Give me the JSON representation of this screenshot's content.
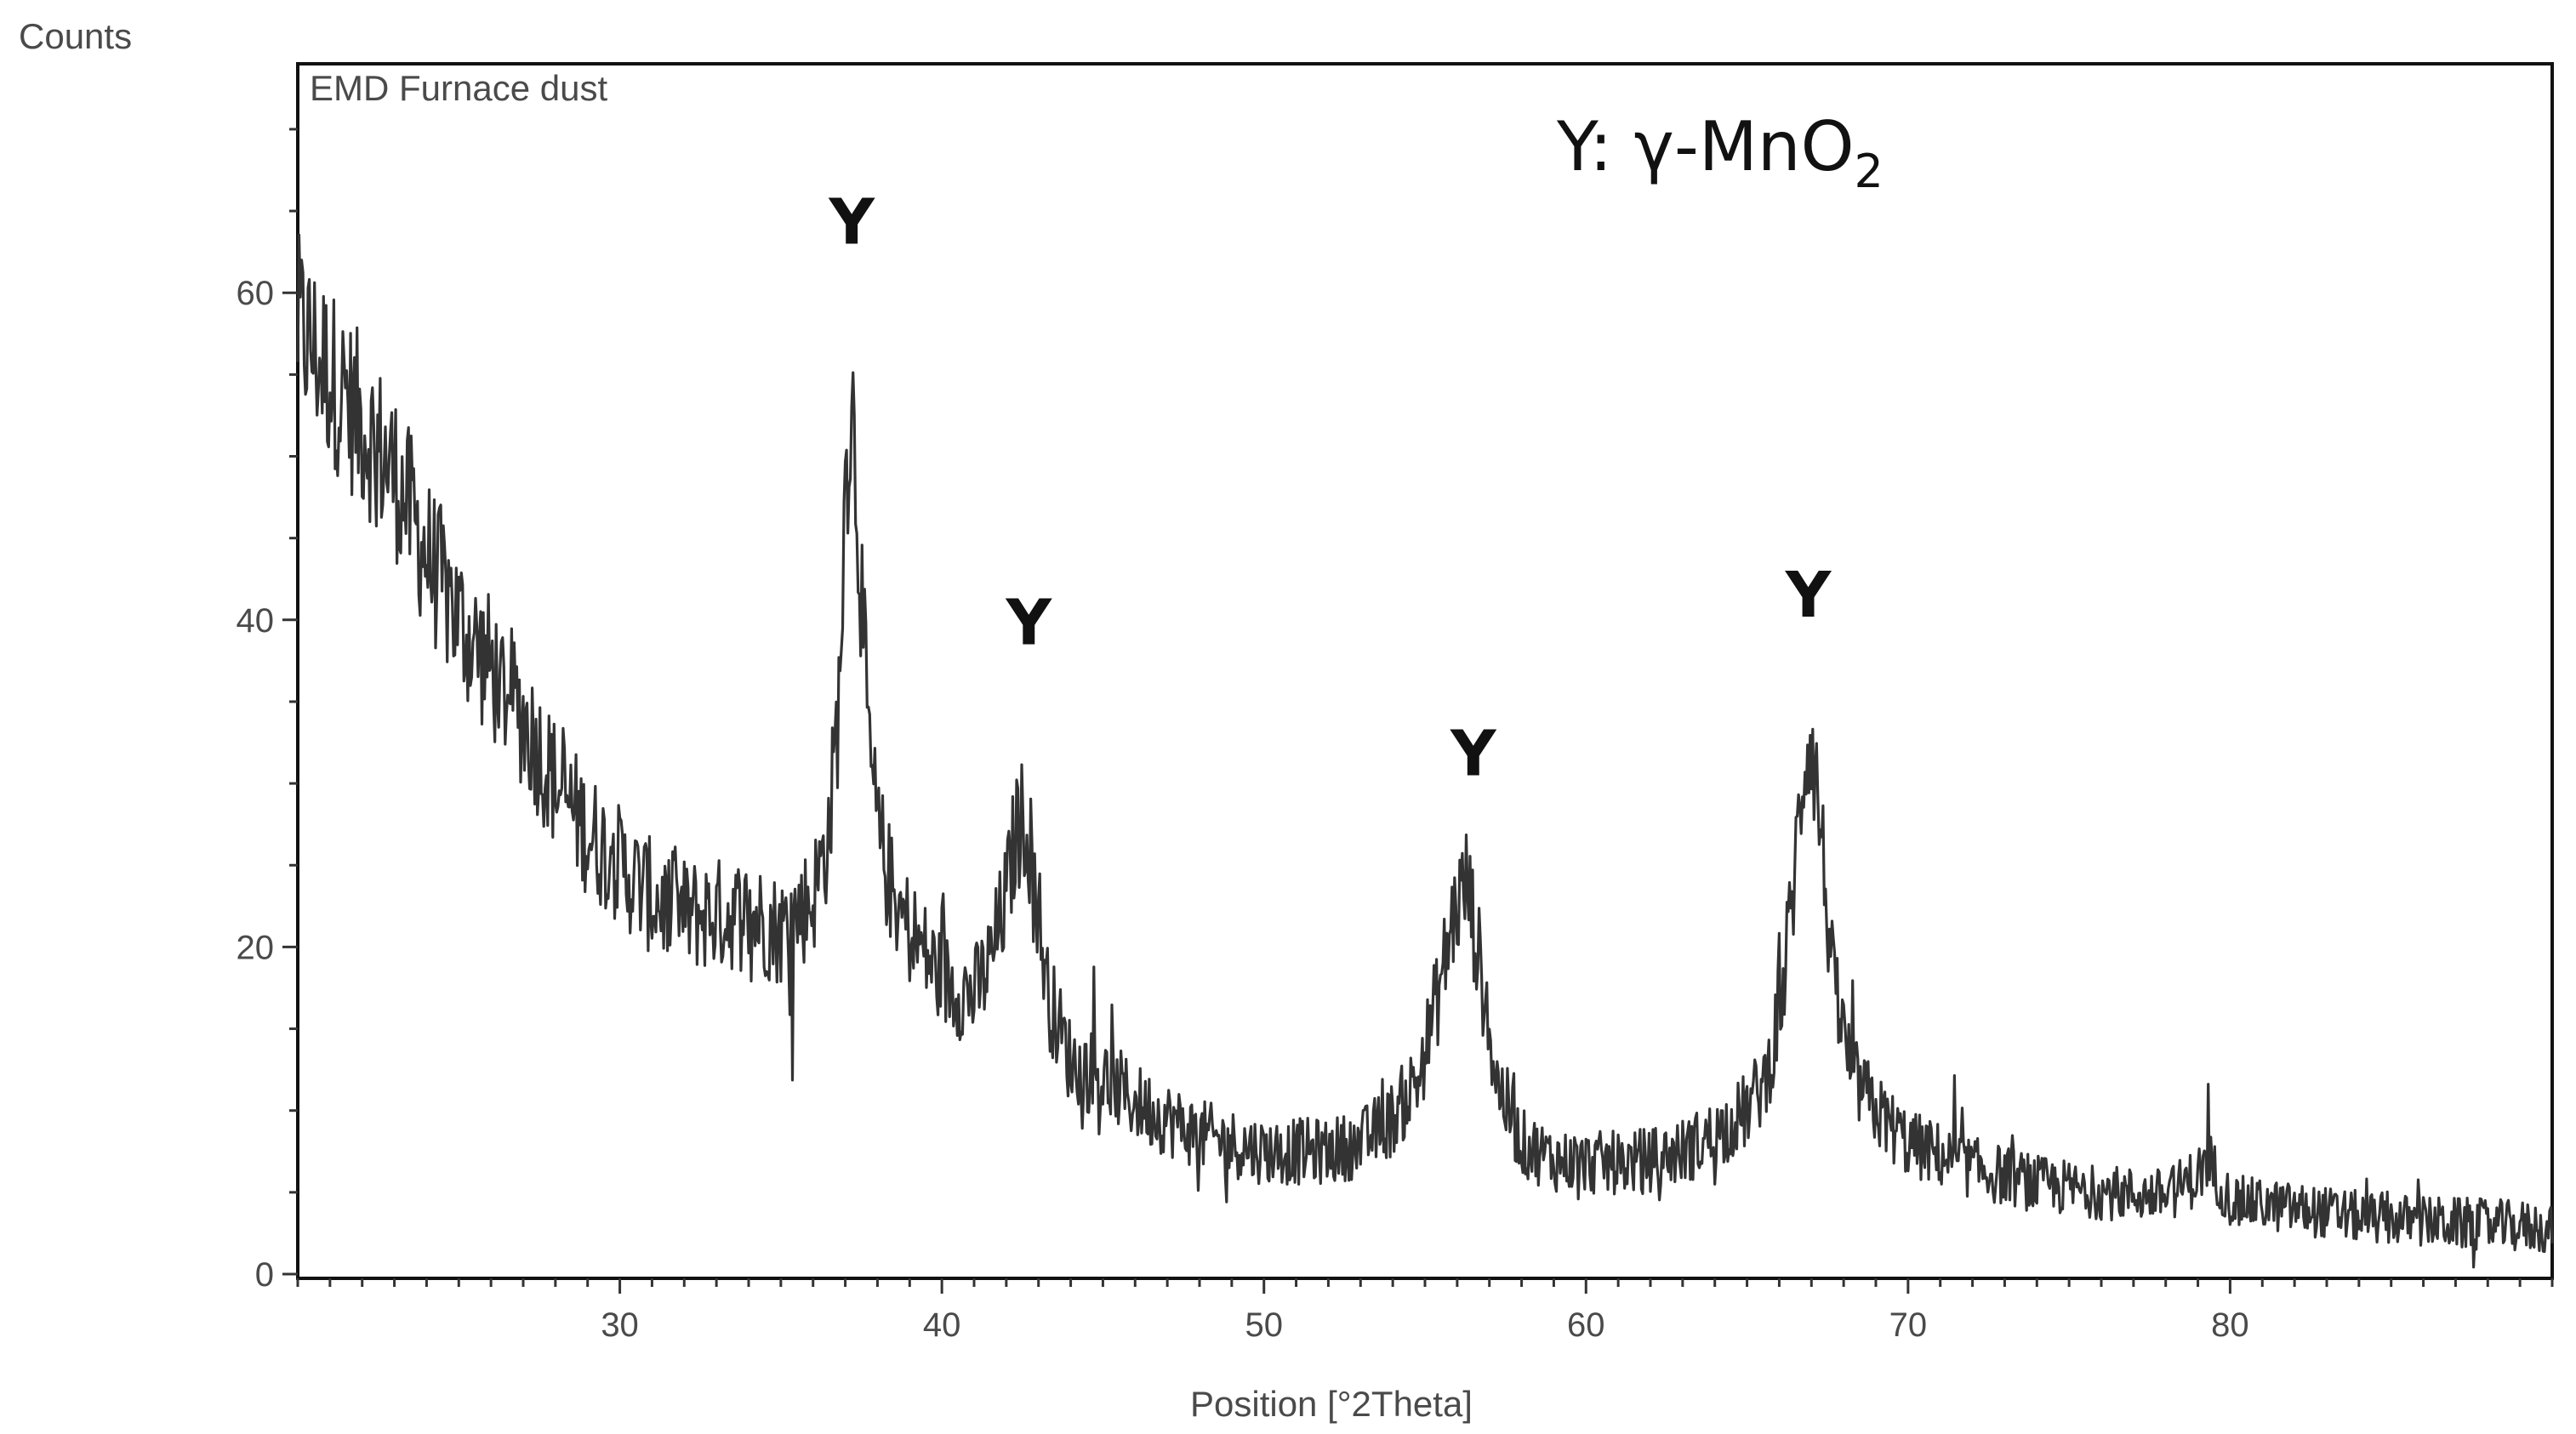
{
  "chart_data": {
    "type": "line",
    "title": "EMD Furnace dust",
    "xlabel": "Position [°2Theta]",
    "ylabel": "Counts",
    "xlim": [
      20,
      90
    ],
    "ylim": [
      0,
      74
    ],
    "xticks": [
      30,
      40,
      50,
      60,
      70,
      80
    ],
    "yticks": [
      0,
      20,
      40,
      60
    ],
    "grid": false,
    "legend": {
      "symbol": "Y",
      "separator": ": ",
      "phase": "γ-MnO",
      "subscript": "2",
      "placement": "top-right"
    },
    "series": [
      {
        "color": "#333333",
        "x": [
          20,
          21,
          22,
          23,
          24,
          25,
          26,
          27,
          28,
          29,
          30,
          31,
          32,
          33,
          34,
          35,
          35.5,
          36,
          36.5,
          36.8,
          37.0,
          37.2,
          37.4,
          37.7,
          38,
          38.5,
          39,
          40,
          41,
          41.5,
          42,
          42.3,
          42.6,
          42.9,
          43.3,
          44,
          45,
          46,
          47,
          48,
          49,
          50,
          51,
          52,
          53,
          54,
          54.8,
          55.4,
          55.9,
          56.3,
          56.7,
          57.2,
          58,
          59,
          60,
          61,
          62,
          63,
          64,
          65,
          65.6,
          66.1,
          66.5,
          66.8,
          67.0,
          67.3,
          67.7,
          68.3,
          69,
          70,
          72,
          74,
          76,
          78,
          79,
          79.3,
          80,
          82,
          84,
          86,
          88,
          90
        ],
        "y": [
          58,
          55,
          52,
          49,
          44,
          40,
          37,
          34,
          30,
          27,
          25,
          23,
          22,
          22,
          22,
          21,
          22,
          23,
          27,
          35,
          48,
          54,
          46,
          33,
          27,
          23,
          21,
          18,
          17,
          19,
          23,
          27,
          28,
          24,
          17,
          13,
          12,
          10.5,
          9.5,
          8.5,
          8,
          7.5,
          7.5,
          7.5,
          8,
          9.5,
          12,
          17,
          22,
          24,
          19,
          12,
          8,
          7,
          6.8,
          6.8,
          7,
          7.5,
          8.5,
          10,
          12,
          17,
          25,
          32,
          33,
          27,
          17,
          12,
          10,
          8,
          6.5,
          5.5,
          5,
          4.8,
          6,
          7,
          4.5,
          4,
          3.5,
          3.2,
          3,
          2.8
        ]
      }
    ],
    "peak_markers": [
      {
        "label": "Y",
        "x": 37.2,
        "y": 63
      },
      {
        "label": "Y",
        "x": 42.7,
        "y": 38.5
      },
      {
        "label": "Y",
        "x": 56.5,
        "y": 30.5
      },
      {
        "label": "Y",
        "x": 66.9,
        "y": 40.2
      }
    ]
  }
}
